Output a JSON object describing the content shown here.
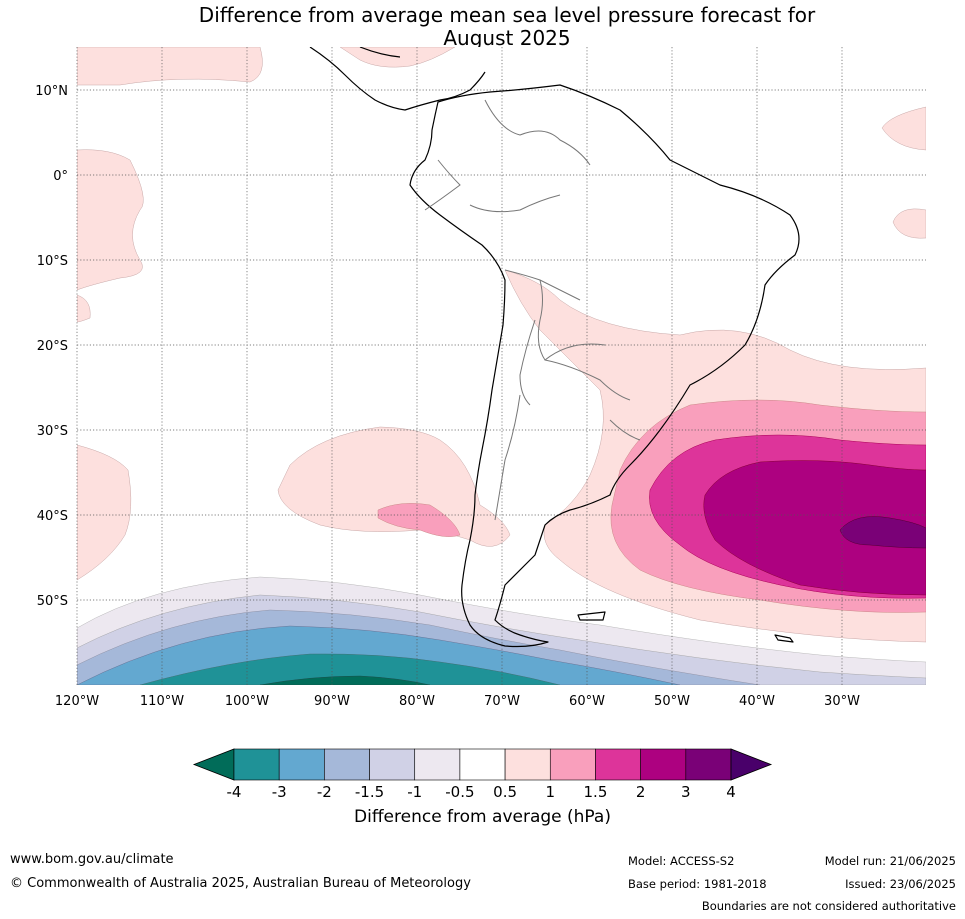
{
  "title_line1": "Difference from average mean sea level pressure forecast for",
  "title_line2": "August 2025",
  "lat_labels": [
    "10°N",
    "0°",
    "10°S",
    "20°S",
    "30°S",
    "40°S",
    "50°S"
  ],
  "lon_labels": [
    "120°W",
    "110°W",
    "100°W",
    "90°W",
    "80°W",
    "70°W",
    "60°W",
    "50°W",
    "40°W",
    "30°W"
  ],
  "colorbar": {
    "ticks": [
      "-4",
      "-3",
      "-2",
      "-1.5",
      "-1",
      "-0.5",
      "0.5",
      "1",
      "1.5",
      "2",
      "3",
      "4"
    ],
    "colors": [
      "#1f9297",
      "#63a8d0",
      "#a5b8d9",
      "#d0d1e6",
      "#ede8f0",
      "#ffffff",
      "#fde0de",
      "#f99fbc",
      "#dd349a",
      "#ad0180",
      "#7a0177"
    ],
    "under_color": "#016c59",
    "over_color": "#49006a",
    "label": "Difference from average (hPa)"
  },
  "footer": {
    "website": "www.bom.gov.au/climate",
    "copyright": "© Commonwealth of Australia 2025, Australian Bureau of Meteorology",
    "model": "Model: ACCESS-S2",
    "base_period": "Base period: 1981-2018",
    "model_run": "Model run: 21/06/2025",
    "issued": "Issued: 23/06/2025",
    "disclaimer": "Boundaries are not considered authoritative"
  }
}
